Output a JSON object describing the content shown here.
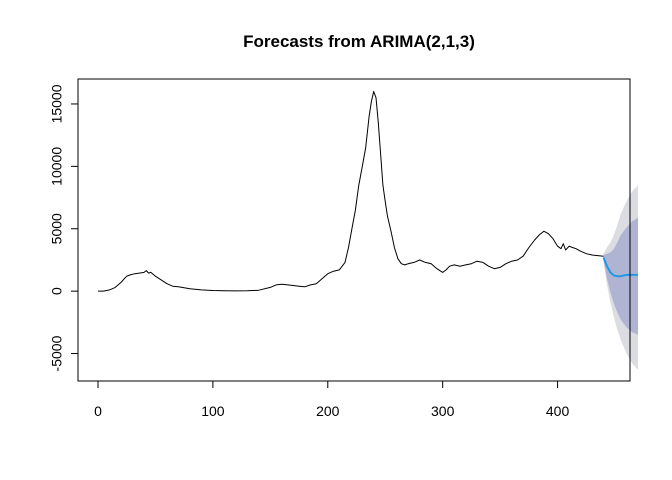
{
  "chart_data": {
    "type": "line",
    "title": "Forecasts from ARIMA(2,1,3)",
    "xlabel": "",
    "ylabel": "",
    "xlim": [
      0,
      470
    ],
    "ylim": [
      -7200,
      17000
    ],
    "x_ticks": [
      0,
      100,
      200,
      300,
      400
    ],
    "y_ticks": [
      -5000,
      0,
      5000,
      10000,
      15000
    ],
    "grid": false,
    "colors": {
      "observed": "#000000",
      "forecast_mean": "#2297E6",
      "interval_80": "#B0B4D3",
      "interval_95": "#DCDCE3"
    },
    "observed": {
      "x": [
        0,
        5,
        10,
        15,
        20,
        25,
        28,
        32,
        36,
        40,
        42,
        44,
        46,
        50,
        55,
        60,
        65,
        70,
        80,
        90,
        100,
        110,
        120,
        130,
        140,
        150,
        155,
        160,
        165,
        170,
        175,
        180,
        185,
        190,
        195,
        200,
        205,
        210,
        215,
        218,
        221,
        224,
        227,
        230,
        233,
        236,
        238,
        240,
        242,
        244,
        246,
        248,
        250,
        252,
        255,
        258,
        261,
        264,
        267,
        270,
        275,
        280,
        285,
        290,
        295,
        300,
        303,
        306,
        310,
        315,
        320,
        325,
        330,
        335,
        340,
        345,
        350,
        355,
        360,
        365,
        370,
        375,
        380,
        384,
        388,
        392,
        396,
        400,
        403,
        405,
        407,
        410,
        413,
        416,
        420,
        425,
        430,
        435,
        440
      ],
      "y": [
        0,
        0,
        100,
        300,
        700,
        1200,
        1300,
        1400,
        1450,
        1500,
        1650,
        1450,
        1500,
        1200,
        900,
        600,
        400,
        350,
        200,
        100,
        50,
        30,
        20,
        30,
        80,
        300,
        500,
        550,
        500,
        450,
        400,
        350,
        500,
        600,
        1000,
        1400,
        1600,
        1700,
        2300,
        3500,
        5000,
        6500,
        8500,
        10000,
        11500,
        14000,
        15200,
        16000,
        15500,
        13500,
        11000,
        8500,
        7200,
        6000,
        4800,
        3500,
        2600,
        2200,
        2100,
        2200,
        2300,
        2500,
        2300,
        2200,
        1800,
        1500,
        1700,
        2000,
        2100,
        2000,
        2100,
        2200,
        2400,
        2300,
        2000,
        1800,
        1900,
        2200,
        2400,
        2500,
        2800,
        3500,
        4100,
        4500,
        4800,
        4600,
        4200,
        3600,
        3400,
        3800,
        3300,
        3600,
        3500,
        3400,
        3200,
        3000,
        2900,
        2850,
        2800
      ]
    },
    "forecast": {
      "x": [
        440,
        443,
        446,
        449,
        452,
        455,
        460,
        465,
        470
      ],
      "mean": [
        2700,
        2000,
        1500,
        1250,
        1200,
        1200,
        1300,
        1300,
        1300
      ],
      "lo80": [
        2500,
        1000,
        -100,
        -1000,
        -1700,
        -2300,
        -2900,
        -3300,
        -3500
      ],
      "hi80": [
        2900,
        3000,
        3100,
        3400,
        3900,
        4500,
        5100,
        5600,
        5900
      ],
      "lo95": [
        2400,
        500,
        -900,
        -2100,
        -3100,
        -3900,
        -5000,
        -5800,
        -6300
      ],
      "hi95": [
        3000,
        3500,
        3900,
        4500,
        5300,
        6200,
        7200,
        8000,
        8500
      ]
    }
  }
}
